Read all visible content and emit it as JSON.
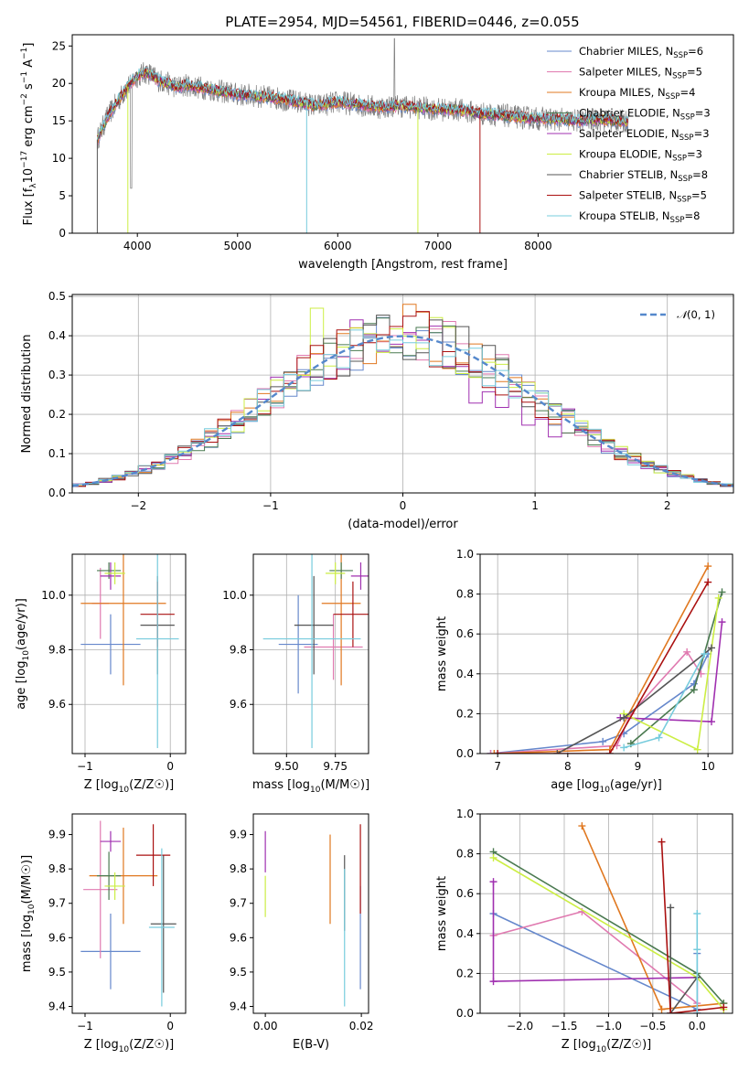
{
  "title": "PLATE=2954, MJD=54561, FIBERID=0446, z=0.055",
  "series_colors": {
    "Chabrier MILES": "#6688cc",
    "Salpeter MILES": "#e07ab0",
    "Kroupa MILES": "#e07820",
    "Chabrier ELODIE": "#4a7a50",
    "Salpeter ELODIE": "#a030b0",
    "Kroupa ELODIE": "#ccee44",
    "Chabrier STELIB": "#555555",
    "Salpeter STELIB": "#aa1010",
    "Kroupa STELIB": "#77ccdd"
  },
  "chart_data": [
    {
      "type": "line",
      "id": "spectrum",
      "xlabel": "wavelength [Angstrom, rest frame]",
      "ylabel": "Flux [fλ10⁻¹⁷ erg cm⁻² s⁻¹ A⁻¹]",
      "xlim": [
        3350,
        9950
      ],
      "ylim": [
        0,
        26.5
      ],
      "xticks": [
        4000,
        5000,
        6000,
        7000,
        8000
      ],
      "yticks": [
        0,
        5,
        10,
        15,
        20,
        25
      ],
      "grid": false,
      "legend_position": "top-right",
      "x": [
        3600,
        3700,
        3800,
        3900,
        4000,
        4100,
        4200,
        4300,
        4400,
        4500,
        4600,
        4700,
        4800,
        4900,
        5000,
        5200,
        5400,
        5600,
        5800,
        6000,
        6200,
        6400,
        6600,
        6800,
        7000,
        7200,
        7400,
        7600,
        7800,
        8000,
        8200,
        8400,
        8600,
        8800,
        8900
      ],
      "y_model": [
        12.5,
        15.5,
        17.5,
        19.5,
        21.0,
        21.5,
        20.5,
        20.0,
        19.5,
        19.8,
        19.5,
        19.3,
        19.0,
        18.8,
        18.5,
        18.3,
        18.0,
        17.5,
        17.0,
        17.5,
        17.2,
        16.8,
        17.0,
        16.8,
        16.5,
        16.5,
        16.0,
        15.8,
        15.5,
        15.3,
        15.2,
        15.0,
        15.2,
        15.0,
        14.8
      ],
      "series": [
        {
          "name": "Chabrier MILES",
          "nssp": "6"
        },
        {
          "name": "Salpeter MILES",
          "nssp": "5"
        },
        {
          "name": "Kroupa MILES",
          "nssp": "4"
        },
        {
          "name": "Chabrier ELODIE",
          "nssp": "3"
        },
        {
          "name": "Salpeter ELODIE",
          "nssp": "3"
        },
        {
          "name": "Kroupa ELODIE",
          "nssp": "3"
        },
        {
          "name": "Chabrier STELIB",
          "nssp": "8"
        },
        {
          "name": "Salpeter STELIB",
          "nssp": "5"
        },
        {
          "name": "Kroupa STELIB",
          "nssp": "8"
        }
      ]
    },
    {
      "type": "line",
      "id": "residuals",
      "xlabel": "(data-model)/error",
      "ylabel": "Normed distribution",
      "xlim": [
        -2.5,
        2.5
      ],
      "ylim": [
        0,
        0.505
      ],
      "xticks": [
        -2,
        -1,
        0,
        1,
        2
      ],
      "yticks": [
        0.0,
        0.1,
        0.2,
        0.3,
        0.4,
        0.5
      ],
      "grid": true,
      "legend_position": "top-right",
      "legend_label": "𝒩(0, 1)",
      "bin_width": 0.1
    },
    {
      "type": "scatter",
      "id": "age-vs-z",
      "xlabel": "Z [log10(Z/Z☉)]",
      "ylabel": "age  [log10(age/yr)]",
      "xlim": [
        -1.15,
        0.18
      ],
      "ylim": [
        9.42,
        10.15
      ],
      "xticks": [
        -1,
        0
      ],
      "yticks": [
        9.6,
        9.8,
        10.0
      ],
      "grid": true,
      "points": [
        {
          "series": "Chabrier MILES",
          "x": -0.7,
          "y": 9.82,
          "xerr": 0.35,
          "yerr": 0.11
        },
        {
          "series": "Salpeter MILES",
          "x": -0.82,
          "y": 9.97,
          "xerr": 0.1,
          "yerr": 0.13
        },
        {
          "series": "Kroupa MILES",
          "x": -0.55,
          "y": 9.97,
          "xerr": 0.5,
          "yerr": 0.3
        },
        {
          "series": "Chabrier ELODIE",
          "x": -0.72,
          "y": 10.09,
          "xerr": 0.14,
          "yerr": 0.03
        },
        {
          "series": "Salpeter ELODIE",
          "x": -0.7,
          "y": 10.07,
          "xerr": 0.12,
          "yerr": 0.05
        },
        {
          "series": "Kroupa ELODIE",
          "x": -0.65,
          "y": 10.08,
          "xerr": 0.12,
          "yerr": 0.04
        },
        {
          "series": "Chabrier STELIB",
          "x": -0.15,
          "y": 9.89,
          "xerr": 0.2,
          "yerr": 0.18
        },
        {
          "series": "Salpeter STELIB",
          "x": -0.15,
          "y": 9.93,
          "xerr": 0.2,
          "yerr": 0.12
        },
        {
          "series": "Kroupa STELIB",
          "x": -0.15,
          "y": 9.84,
          "xerr": 0.25,
          "yerr": 0.4
        }
      ]
    },
    {
      "type": "scatter",
      "id": "age-vs-mass",
      "xlabel": "mass [log10(M/M☉)]",
      "ylabel": "",
      "xlim": [
        9.33,
        9.92
      ],
      "ylim": [
        9.42,
        10.15
      ],
      "xticks": [
        9.5,
        9.75
      ],
      "xticklabels": [
        "9.50",
        "9.75"
      ],
      "yticks": [
        9.6,
        9.8,
        10.0
      ],
      "grid": true,
      "points": [
        {
          "series": "Chabrier MILES",
          "x": 9.56,
          "y": 9.82,
          "xerr": 0.1,
          "yerr": 0.18
        },
        {
          "series": "Salpeter MILES",
          "x": 9.74,
          "y": 9.81,
          "xerr": 0.15,
          "yerr": 0.12
        },
        {
          "series": "Kroupa MILES",
          "x": 9.78,
          "y": 9.97,
          "xerr": 0.1,
          "yerr": 0.3
        },
        {
          "series": "Chabrier ELODIE",
          "x": 9.78,
          "y": 10.09,
          "xerr": 0.06,
          "yerr": 0.03
        },
        {
          "series": "Salpeter ELODIE",
          "x": 9.88,
          "y": 10.07,
          "xerr": 0.05,
          "yerr": 0.05
        },
        {
          "series": "Kroupa ELODIE",
          "x": 9.75,
          "y": 10.08,
          "xerr": 0.05,
          "yerr": 0.04
        },
        {
          "series": "Chabrier STELIB",
          "x": 9.64,
          "y": 9.89,
          "xerr": 0.1,
          "yerr": 0.18
        },
        {
          "series": "Salpeter STELIB",
          "x": 9.84,
          "y": 9.93,
          "xerr": 0.1,
          "yerr": 0.12
        },
        {
          "series": "Kroupa STELIB",
          "x": 9.63,
          "y": 9.84,
          "xerr": 0.25,
          "yerr": 0.4
        }
      ]
    },
    {
      "type": "line",
      "id": "mass-weight-vs-age",
      "xlabel": "age  [log10(age/yr)]",
      "ylabel": "mass weight",
      "xlim": [
        6.75,
        10.35
      ],
      "ylim": [
        0,
        1.0
      ],
      "xticks": [
        7,
        8,
        9,
        10
      ],
      "yticks": [
        0.0,
        0.2,
        0.4,
        0.6,
        0.8,
        1.0
      ],
      "grid": true,
      "series": [
        {
          "name": "Chabrier MILES",
          "x": [
            6.9,
            8.5,
            8.8,
            9.8,
            10.0
          ],
          "y": [
            0.0,
            0.06,
            0.1,
            0.35,
            0.5
          ]
        },
        {
          "name": "Salpeter MILES",
          "x": [
            6.9,
            8.7,
            8.9,
            9.7,
            9.9
          ],
          "y": [
            0.0,
            0.04,
            0.2,
            0.51,
            0.4
          ]
        },
        {
          "name": "Kroupa MILES",
          "x": [
            6.95,
            8.6,
            10.0
          ],
          "y": [
            0.0,
            0.02,
            0.94
          ]
        },
        {
          "name": "Chabrier ELODIE",
          "x": [
            8.9,
            9.8,
            10.2
          ],
          "y": [
            0.05,
            0.32,
            0.81
          ]
        },
        {
          "name": "Salpeter ELODIE",
          "x": [
            8.75,
            10.05,
            10.2
          ],
          "y": [
            0.18,
            0.16,
            0.66
          ]
        },
        {
          "name": "Kroupa ELODIE",
          "x": [
            8.8,
            9.85,
            10.15
          ],
          "y": [
            0.2,
            0.02,
            0.78
          ]
        },
        {
          "name": "Chabrier STELIB",
          "x": [
            7.85,
            8.8,
            10.05
          ],
          "y": [
            0.0,
            0.18,
            0.53
          ]
        },
        {
          "name": "Salpeter STELIB",
          "x": [
            7.0,
            8.6,
            10.0
          ],
          "y": [
            0.0,
            0.0,
            0.86
          ]
        },
        {
          "name": "Kroupa STELIB",
          "x": [
            8.8,
            9.3,
            9.95
          ],
          "y": [
            0.03,
            0.08,
            0.5
          ]
        }
      ]
    },
    {
      "type": "scatter",
      "id": "mass-vs-z",
      "xlabel": "Z [log10(Z/Z☉)]",
      "ylabel": "mass [log10(M/M☉)]",
      "xlim": [
        -1.15,
        0.18
      ],
      "ylim": [
        9.38,
        9.96
      ],
      "xticks": [
        -1,
        0
      ],
      "yticks": [
        9.4,
        9.5,
        9.6,
        9.7,
        9.8,
        9.9
      ],
      "grid": false,
      "points": [
        {
          "series": "Chabrier MILES",
          "x": -0.7,
          "y": 9.56,
          "xerr": 0.35,
          "yerr": 0.11
        },
        {
          "series": "Salpeter MILES",
          "x": -0.82,
          "y": 9.74,
          "xerr": 0.2,
          "yerr": 0.2
        },
        {
          "series": "Kroupa MILES",
          "x": -0.55,
          "y": 9.78,
          "xerr": 0.4,
          "yerr": 0.14
        },
        {
          "series": "Chabrier ELODIE",
          "x": -0.72,
          "y": 9.78,
          "xerr": 0.14,
          "yerr": 0.07
        },
        {
          "series": "Salpeter ELODIE",
          "x": -0.7,
          "y": 9.88,
          "xerr": 0.12,
          "yerr": 0.03
        },
        {
          "series": "Kroupa ELODIE",
          "x": -0.65,
          "y": 9.75,
          "xerr": 0.12,
          "yerr": 0.04
        },
        {
          "series": "Chabrier STELIB",
          "x": -0.08,
          "y": 9.64,
          "xerr": 0.15,
          "yerr": 0.2
        },
        {
          "series": "Salpeter STELIB",
          "x": -0.2,
          "y": 9.84,
          "xerr": 0.2,
          "yerr": 0.09
        },
        {
          "series": "Kroupa STELIB",
          "x": -0.1,
          "y": 9.63,
          "xerr": 0.15,
          "yerr": 0.23
        }
      ]
    },
    {
      "type": "scatter",
      "id": "mass-vs-ebv",
      "xlabel": "E(B-V)",
      "ylabel": "",
      "xlim": [
        -0.0025,
        0.0215
      ],
      "ylim": [
        9.38,
        9.96
      ],
      "xticks": [
        0.0,
        0.02
      ],
      "xticklabels": [
        "0.00",
        "0.02"
      ],
      "yticks": [
        9.4,
        9.5,
        9.6,
        9.7,
        9.8,
        9.9
      ],
      "grid": false,
      "points": [
        {
          "series": "Salpeter ELODIE",
          "x": 0.0,
          "y": 9.85,
          "xerr": 0,
          "yerr": 0.06
        },
        {
          "series": "Kroupa ELODIE",
          "x": 0.0,
          "y": 9.72,
          "xerr": 0,
          "yerr": 0.06
        },
        {
          "series": "Kroupa MILES",
          "x": 0.0135,
          "y": 9.77,
          "xerr": 0,
          "yerr": 0.13
        },
        {
          "series": "Chabrier STELIB",
          "x": 0.0165,
          "y": 9.73,
          "xerr": 0,
          "yerr": 0.11
        },
        {
          "series": "Kroupa STELIB",
          "x": 0.0165,
          "y": 9.6,
          "xerr": 0,
          "yerr": 0.2
        },
        {
          "series": "Chabrier MILES",
          "x": 0.0198,
          "y": 9.6,
          "xerr": 0,
          "yerr": 0.15
        },
        {
          "series": "Salpeter STELIB",
          "x": 0.0198,
          "y": 9.8,
          "xerr": 0,
          "yerr": 0.13
        }
      ]
    },
    {
      "type": "line",
      "id": "mass-weight-vs-z",
      "xlabel": "Z [log10(Z/Z☉)]",
      "ylabel": "mass weight",
      "xlim": [
        -2.45,
        0.4
      ],
      "ylim": [
        0,
        1.0
      ],
      "xticks": [
        -2.0,
        -1.5,
        -1.0,
        -0.5,
        0.0
      ],
      "xticklabels": [
        "−2.0",
        "−1.5",
        "−1.0",
        "−0.5",
        "0.0"
      ],
      "yticks": [
        0.0,
        0.2,
        0.4,
        0.6,
        0.8,
        1.0
      ],
      "grid": true,
      "series": [
        {
          "name": "Chabrier MILES",
          "x": [
            -2.3,
            0.0,
            0.0
          ],
          "y": [
            0.5,
            0.02,
            0.3
          ]
        },
        {
          "name": "Salpeter MILES",
          "x": [
            -2.3,
            -1.3,
            0.0
          ],
          "y": [
            0.39,
            0.51,
            0.05
          ]
        },
        {
          "name": "Kroupa MILES",
          "x": [
            -1.3,
            -0.4,
            0.3
          ],
          "y": [
            0.94,
            0.02,
            0.05
          ]
        },
        {
          "name": "Chabrier ELODIE",
          "x": [
            -2.3,
            0.0,
            0.3
          ],
          "y": [
            0.81,
            0.2,
            0.05
          ]
        },
        {
          "name": "Salpeter ELODIE",
          "x": [
            -2.3,
            -2.3,
            0.0,
            0.0
          ],
          "y": [
            0.66,
            0.16,
            0.18,
            0.0
          ]
        },
        {
          "name": "Kroupa ELODIE",
          "x": [
            -2.3,
            0.0,
            0.3
          ],
          "y": [
            0.78,
            0.18,
            0.02
          ]
        },
        {
          "name": "Chabrier STELIB",
          "x": [
            -0.3,
            -0.3,
            0.0
          ],
          "y": [
            0.53,
            0.0,
            0.18
          ]
        },
        {
          "name": "Salpeter STELIB",
          "x": [
            -0.4,
            -0.3,
            0.3
          ],
          "y": [
            0.86,
            0.0,
            0.03
          ]
        },
        {
          "name": "Kroupa STELIB",
          "x": [
            0.0,
            0.0,
            0.0
          ],
          "y": [
            0.5,
            0.0,
            0.32
          ]
        }
      ]
    }
  ]
}
